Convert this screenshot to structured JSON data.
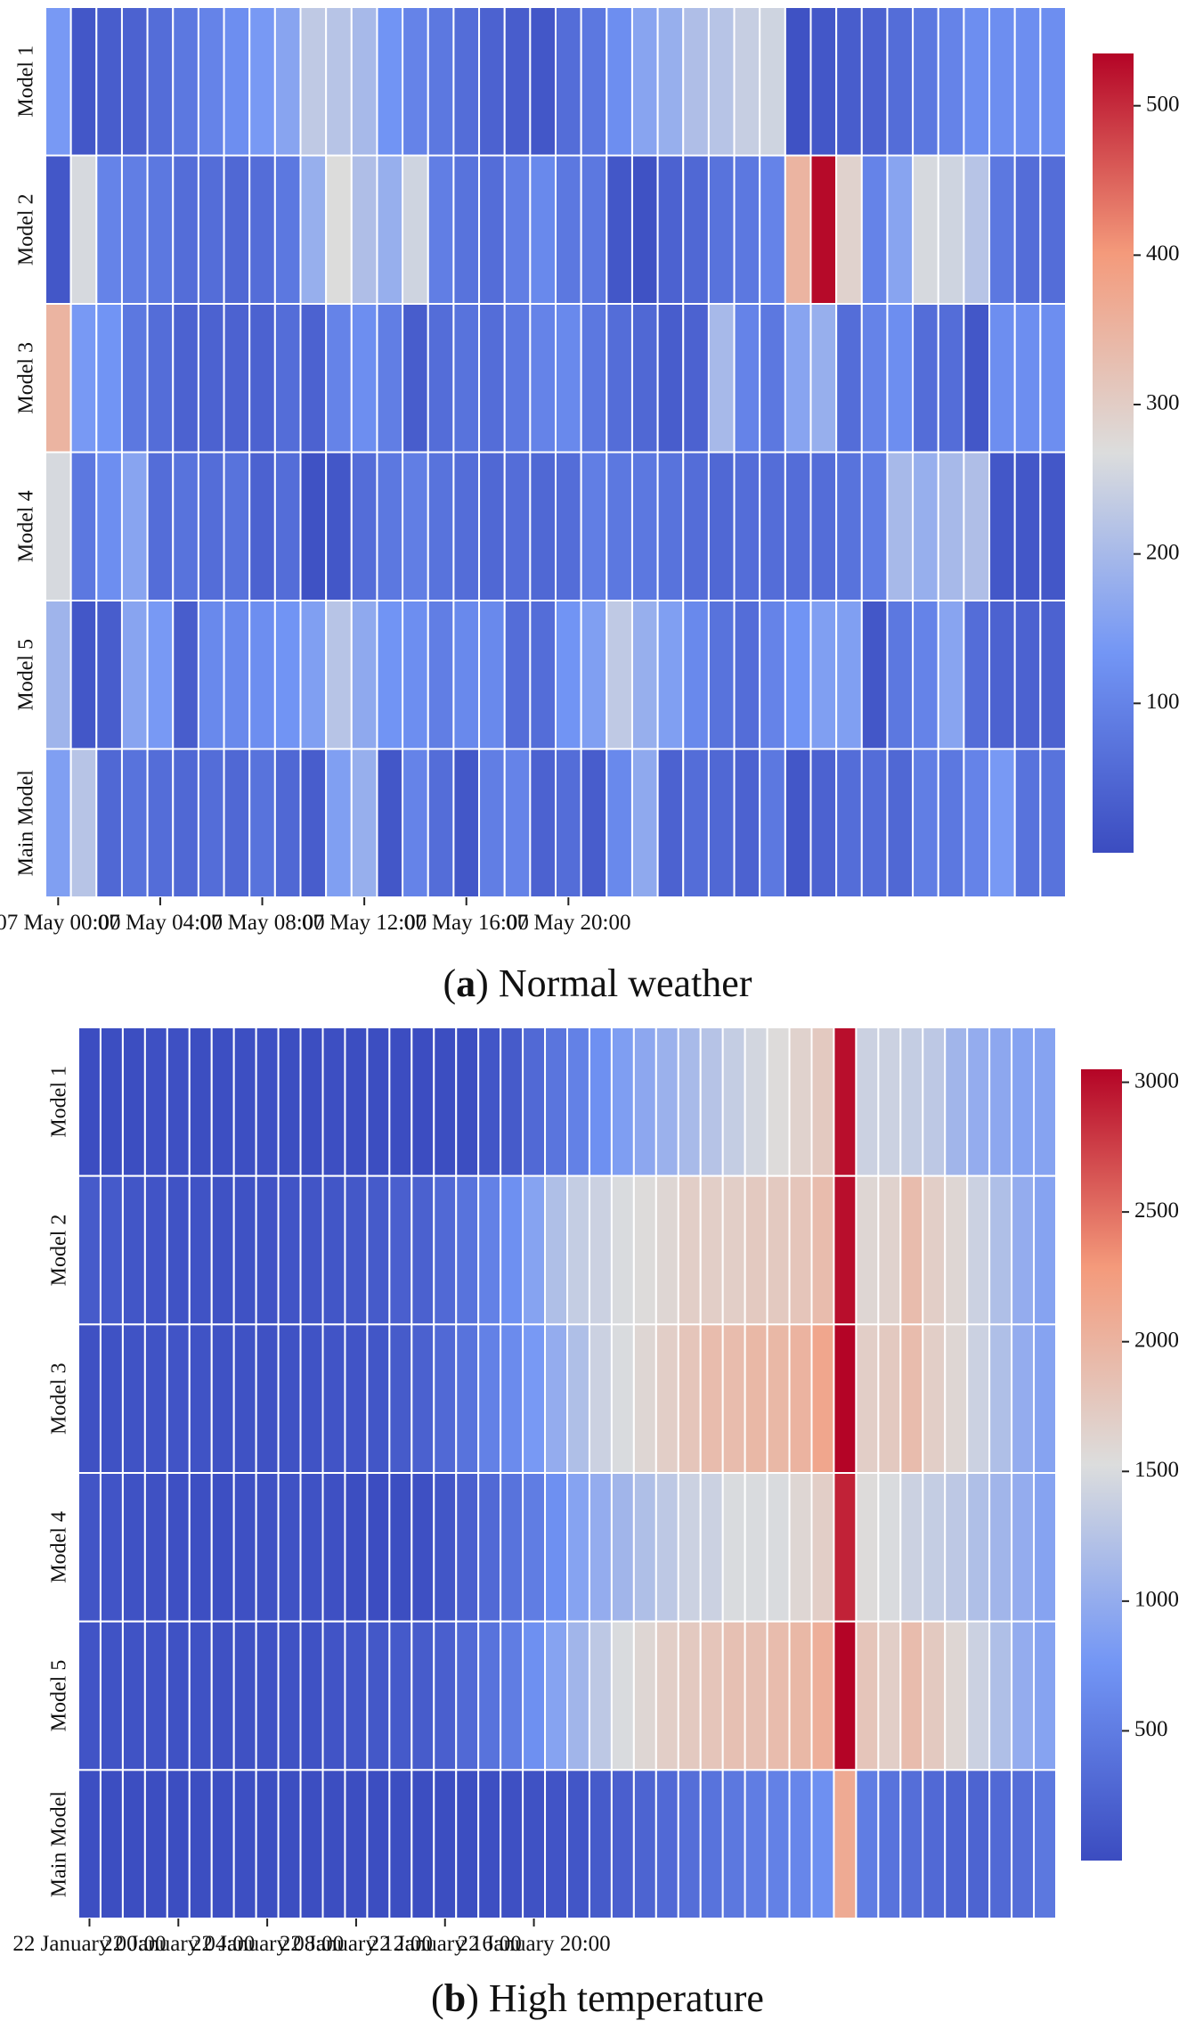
{
  "chart_data": [
    {
      "type": "heatmap",
      "panel": "a",
      "caption": {
        "letter": "a",
        "text": "Normal weather"
      },
      "rows": [
        "Model 1",
        "Model 2",
        "Model 3",
        "Model 4",
        "Model 5",
        "Main Model"
      ],
      "x_tick_labels": [
        "07 May 00:00",
        "07 May 04:00",
        "07 May 08:00",
        "07 May 12:00",
        "07 May 16:00",
        "07 May 20:00"
      ],
      "x_tick_every": 4,
      "colorbar": {
        "min": 0,
        "max": 535,
        "ticks": [
          100,
          200,
          300,
          400,
          500
        ],
        "tick_labels": [
          "100",
          "200",
          "300",
          "400",
          "500"
        ]
      },
      "values": [
        [
          140,
          20,
          30,
          40,
          60,
          80,
          100,
          120,
          140,
          160,
          230,
          220,
          200,
          130,
          100,
          80,
          60,
          40,
          30,
          20,
          60,
          80,
          120,
          160,
          180,
          210,
          220,
          240,
          250,
          10,
          20,
          30,
          40,
          60,
          80,
          100,
          120
        ],
        [
          20,
          260,
          100,
          90,
          80,
          60,
          60,
          50,
          60,
          80,
          180,
          270,
          210,
          180,
          250,
          90,
          70,
          60,
          90,
          110,
          80,
          80,
          20,
          10,
          40,
          50,
          70,
          80,
          100,
          350,
          530,
          290,
          100,
          160,
          260,
          250,
          220,
          80,
          60,
          60
        ],
        [
          350,
          140,
          130,
          80,
          60,
          40,
          40,
          40,
          40,
          60,
          40,
          100,
          120,
          90,
          30,
          60,
          70,
          60,
          80,
          100,
          110,
          80,
          60,
          50,
          30,
          40,
          200,
          100,
          80,
          160,
          180,
          60,
          100,
          120,
          60,
          60,
          20,
          120
        ],
        [
          260,
          80,
          120,
          160,
          60,
          70,
          60,
          70,
          40,
          60,
          10,
          20,
          60,
          80,
          90,
          70,
          60,
          50,
          60,
          50,
          60,
          90,
          80,
          80,
          70,
          60,
          50,
          60,
          60,
          60,
          60,
          70,
          90,
          200,
          180,
          200,
          210,
          20
        ],
        [
          190,
          20,
          30,
          160,
          140,
          30,
          110,
          110,
          120,
          130,
          150,
          220,
          170,
          130,
          120,
          90,
          110,
          110,
          60,
          60,
          130,
          150,
          230,
          180,
          150,
          110,
          70,
          60,
          100,
          130,
          150,
          150,
          20,
          80,
          100,
          160,
          60,
          40
        ],
        [
          150,
          220,
          50,
          70,
          60,
          50,
          60,
          50,
          70,
          50,
          30,
          150,
          180,
          20,
          100,
          60,
          20,
          90,
          100,
          40,
          60,
          30,
          110,
          170,
          40,
          60,
          50,
          40,
          80,
          20,
          40,
          60,
          60,
          50,
          90,
          80,
          100,
          140,
          70
        ]
      ]
    },
    {
      "type": "heatmap",
      "panel": "b",
      "caption": {
        "letter": "b",
        "text": "High temperature"
      },
      "rows": [
        "Model 1",
        "Model 2",
        "Model 3",
        "Model 4",
        "Model 5",
        "Main Model"
      ],
      "x_tick_labels": [
        "22 January 00:00",
        "22 January 04:00",
        "22 January 08:00",
        "22 January 12:00",
        "22 January 16:00",
        "22 January 20:00"
      ],
      "x_tick_every": 4,
      "colorbar": {
        "min": 0,
        "max": 3050,
        "ticks": [
          500,
          1000,
          1500,
          2000,
          2500,
          3000
        ],
        "tick_labels": [
          "500",
          "1000",
          "1500",
          "2000",
          "2500",
          "3000"
        ]
      },
      "values": [
        [
          10,
          20,
          20,
          40,
          40,
          20,
          30,
          30,
          40,
          20,
          20,
          30,
          20,
          20,
          10,
          10,
          20,
          20,
          100,
          150,
          300,
          420,
          550,
          700,
          850,
          950,
          1050,
          1150,
          1250,
          1350,
          1450,
          1550,
          1650,
          1750,
          3000,
          1400,
          1400,
          1350,
          1300,
          1100,
          1000,
          950,
          900,
          900
        ],
        [
          150,
          140,
          100,
          80,
          70,
          70,
          60,
          60,
          70,
          80,
          90,
          100,
          120,
          150,
          200,
          220,
          300,
          400,
          550,
          700,
          900,
          1200,
          1350,
          1400,
          1500,
          1550,
          1600,
          1700,
          1700,
          1700,
          1750,
          1750,
          1800,
          1900,
          3000,
          1600,
          1650,
          1900,
          1700,
          1600,
          1400,
          1200,
          1000,
          900
        ],
        [
          50,
          60,
          70,
          70,
          80,
          70,
          60,
          60,
          50,
          60,
          70,
          80,
          80,
          100,
          150,
          220,
          300,
          400,
          550,
          650,
          800,
          1000,
          1200,
          1400,
          1500,
          1600,
          1700,
          1800,
          1900,
          1900,
          1950,
          1950,
          2000,
          2150,
          3050,
          1700,
          1750,
          1900,
          1700,
          1600,
          1400,
          1200,
          1000,
          900
        ],
        [
          90,
          80,
          60,
          50,
          40,
          30,
          30,
          40,
          50,
          60,
          60,
          40,
          20,
          10,
          20,
          40,
          100,
          200,
          300,
          400,
          500,
          700,
          900,
          1000,
          1100,
          1200,
          1300,
          1400,
          1400,
          1500,
          1500,
          1500,
          1600,
          1700,
          2900,
          1550,
          1500,
          1400,
          1350,
          1300,
          1200,
          1100,
          1000,
          900
        ],
        [
          80,
          70,
          70,
          70,
          60,
          60,
          50,
          50,
          60,
          60,
          60,
          80,
          100,
          120,
          140,
          160,
          200,
          300,
          400,
          500,
          700,
          900,
          1100,
          1300,
          1500,
          1600,
          1700,
          1750,
          1800,
          1850,
          1850,
          1900,
          1950,
          2050,
          3050,
          1800,
          1700,
          1900,
          1750,
          1600,
          1400,
          1200,
          1000,
          900
        ],
        [
          30,
          20,
          20,
          20,
          20,
          20,
          30,
          30,
          20,
          20,
          20,
          20,
          20,
          20,
          20,
          20,
          20,
          20,
          30,
          40,
          60,
          80,
          100,
          150,
          200,
          250,
          300,
          350,
          400,
          450,
          500,
          550,
          600,
          700,
          2100,
          500,
          400,
          350,
          300,
          250,
          250,
          300,
          350,
          450
        ]
      ]
    }
  ]
}
